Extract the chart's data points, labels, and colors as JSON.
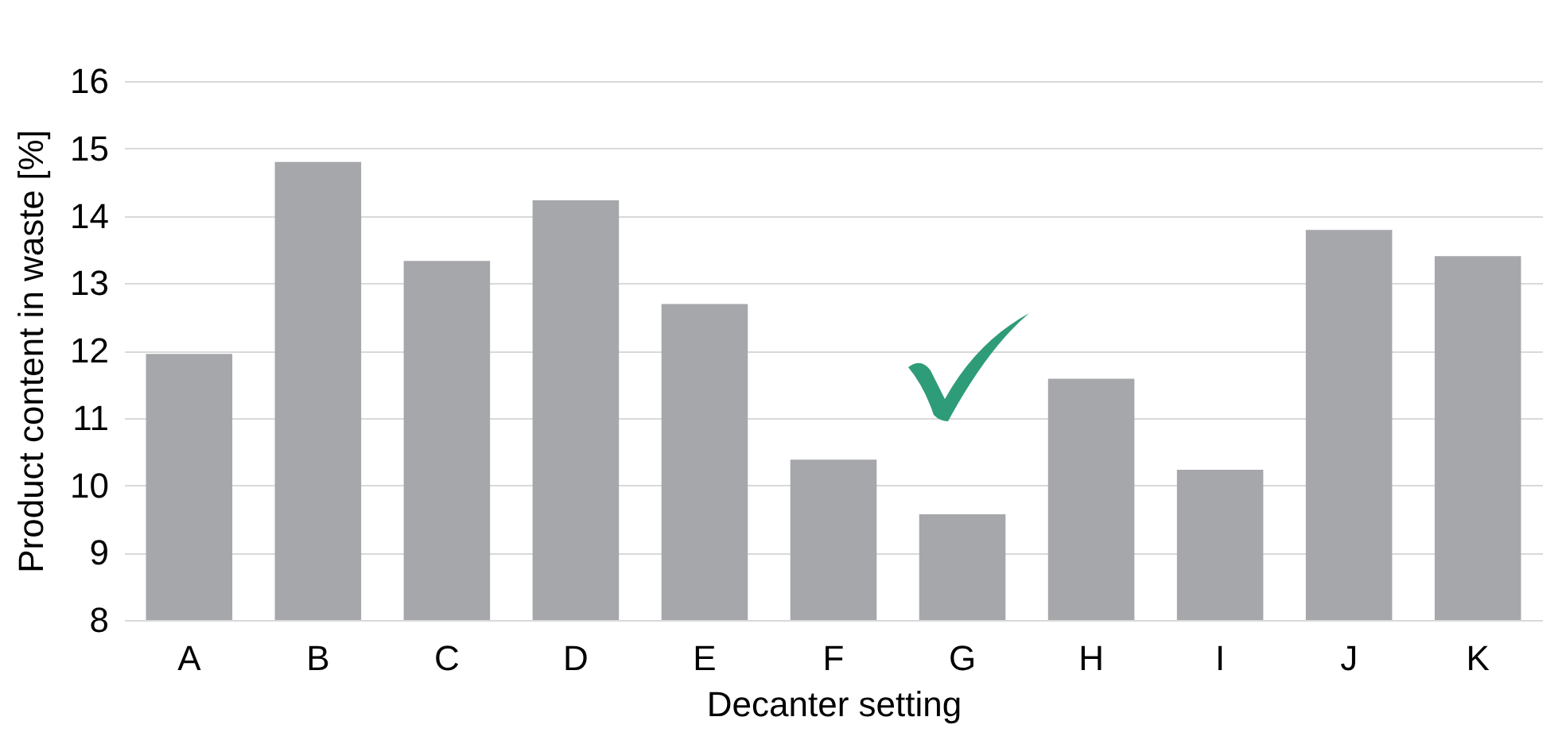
{
  "chart_data": {
    "type": "bar",
    "xlabel": "Decanter setting",
    "ylabel": "Product content in waste [%]",
    "categories": [
      "A",
      "B",
      "C",
      "D",
      "E",
      "F",
      "G",
      "H",
      "I",
      "J",
      "K"
    ],
    "values": [
      11.95,
      14.8,
      13.33,
      14.23,
      12.69,
      10.38,
      9.57,
      11.58,
      10.23,
      13.79,
      13.4
    ],
    "color": "#a6a7ab",
    "ylim": [
      8,
      16
    ],
    "yticks": [
      8,
      9,
      10,
      11,
      12,
      13,
      14,
      15,
      16
    ],
    "grid": "y"
  }
}
